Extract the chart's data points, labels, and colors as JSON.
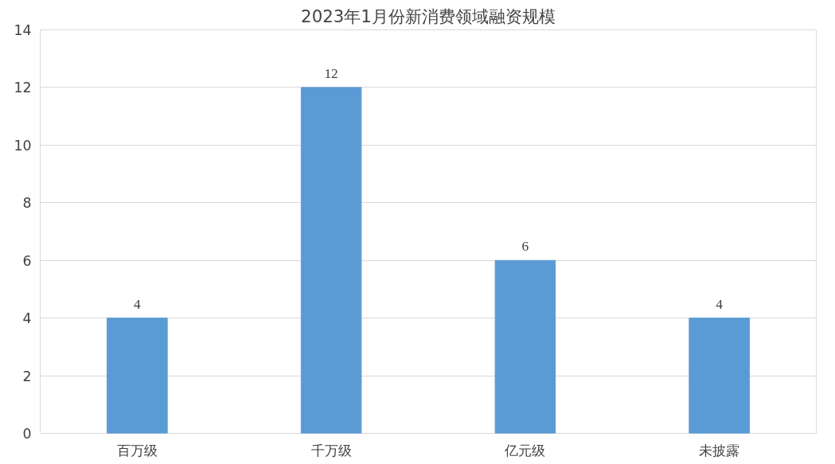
{
  "chart_data": {
    "type": "bar",
    "title": "2023年1月份新消费领域融资规模",
    "categories": [
      "百万级",
      "千万级",
      "亿元级",
      "未披露"
    ],
    "values": [
      4,
      12,
      6,
      4
    ],
    "color": "#5b9bd5",
    "ylim": [
      0,
      14
    ],
    "yticks": [
      0,
      2,
      4,
      6,
      8,
      10,
      12,
      14
    ],
    "grid": "y",
    "data_labels": true
  }
}
